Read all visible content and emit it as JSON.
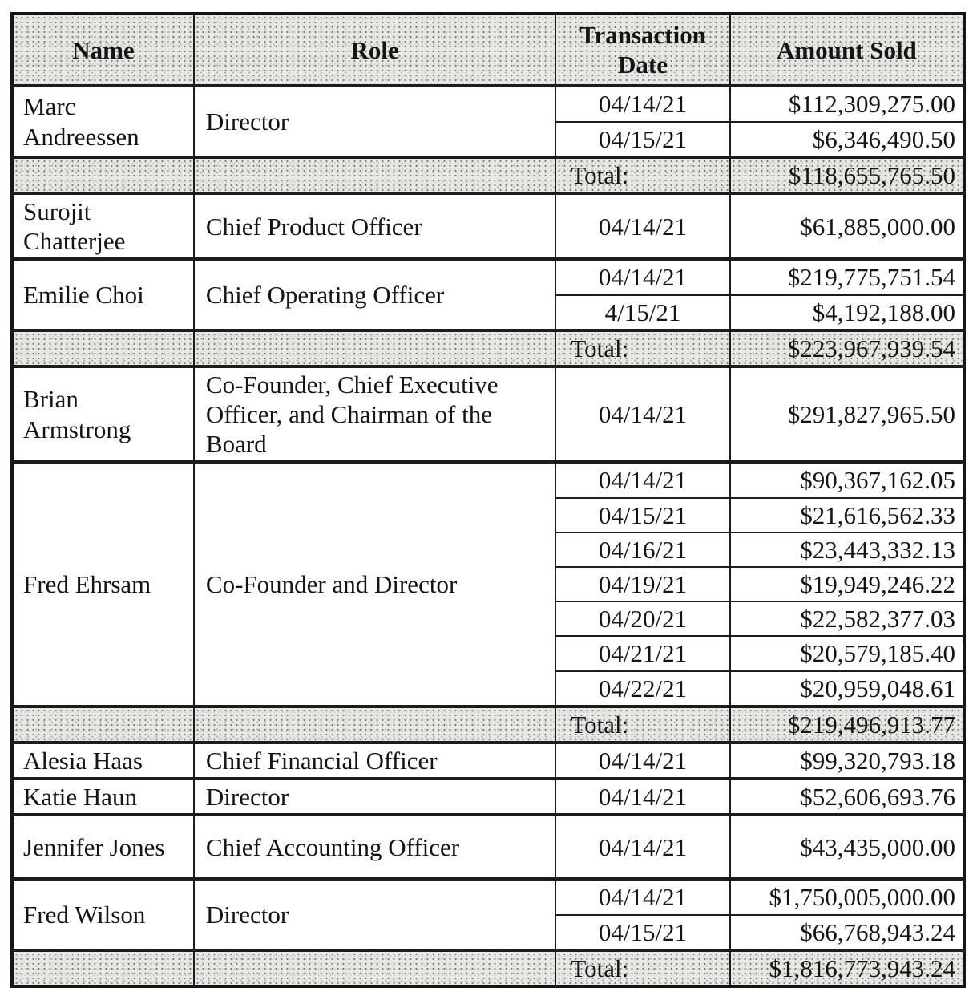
{
  "table": {
    "headers": [
      "Name",
      "Role",
      "Transaction Date",
      "Amount Sold"
    ],
    "total_label": "Total:",
    "groups": [
      {
        "name": "Marc Andreessen",
        "role": "Director",
        "transactions": [
          {
            "date": "04/14/21",
            "amount": "$112,309,275.00"
          },
          {
            "date": "04/15/21",
            "amount": "$6,346,490.50"
          }
        ],
        "total_label": "Total:",
        "total": "$118,655,765.50"
      },
      {
        "name": "Surojit Chatterjee",
        "role": "Chief Product Officer",
        "transactions": [
          {
            "date": "04/14/21",
            "amount": "$61,885,000.00"
          }
        ]
      },
      {
        "name": "Emilie Choi",
        "role": "Chief Operating Officer",
        "transactions": [
          {
            "date": "04/14/21",
            "amount": "$219,775,751.54"
          },
          {
            "date": "4/15/21",
            "amount": "$4,192,188.00"
          }
        ],
        "total_label": "Total:",
        "total": "$223,967,939.54"
      },
      {
        "name": "Brian Armstrong",
        "role": "Co-Founder, Chief Executive Officer, and Chairman of the Board",
        "transactions": [
          {
            "date": "04/14/21",
            "amount": "$291,827,965.50"
          }
        ]
      },
      {
        "name": "Fred Ehrsam",
        "role": "Co-Founder and Director",
        "transactions": [
          {
            "date": "04/14/21",
            "amount": "$90,367,162.05"
          },
          {
            "date": "04/15/21",
            "amount": "$21,616,562.33"
          },
          {
            "date": "04/16/21",
            "amount": "$23,443,332.13"
          },
          {
            "date": "04/19/21",
            "amount": "$19,949,246.22"
          },
          {
            "date": "04/20/21",
            "amount": "$22,582,377.03"
          },
          {
            "date": "04/21/21",
            "amount": "$20,579,185.40"
          },
          {
            "date": "04/22/21",
            "amount": "$20,959,048.61"
          }
        ],
        "total_label": "Total:",
        "total": "$219,496,913.77"
      },
      {
        "name": "Alesia Haas",
        "role": "Chief Financial Officer",
        "transactions": [
          {
            "date": "04/14/21",
            "amount": "$99,320,793.18"
          }
        ]
      },
      {
        "name": "Katie Haun",
        "role": "Director",
        "transactions": [
          {
            "date": "04/14/21",
            "amount": "$52,606,693.76"
          }
        ]
      },
      {
        "name": "Jennifer Jones",
        "role": "Chief Accounting Officer",
        "transactions": [
          {
            "date": "04/14/21",
            "amount": "$43,435,000.00"
          }
        ]
      },
      {
        "name": "Fred Wilson",
        "role": "Director",
        "transactions": [
          {
            "date": "04/14/21",
            "amount": "$1,750,005,000.00"
          },
          {
            "date": "04/15/21",
            "amount": "$66,768,943.24"
          }
        ],
        "total_label": "Total:",
        "total": "$1,816,773,943.24"
      }
    ]
  }
}
